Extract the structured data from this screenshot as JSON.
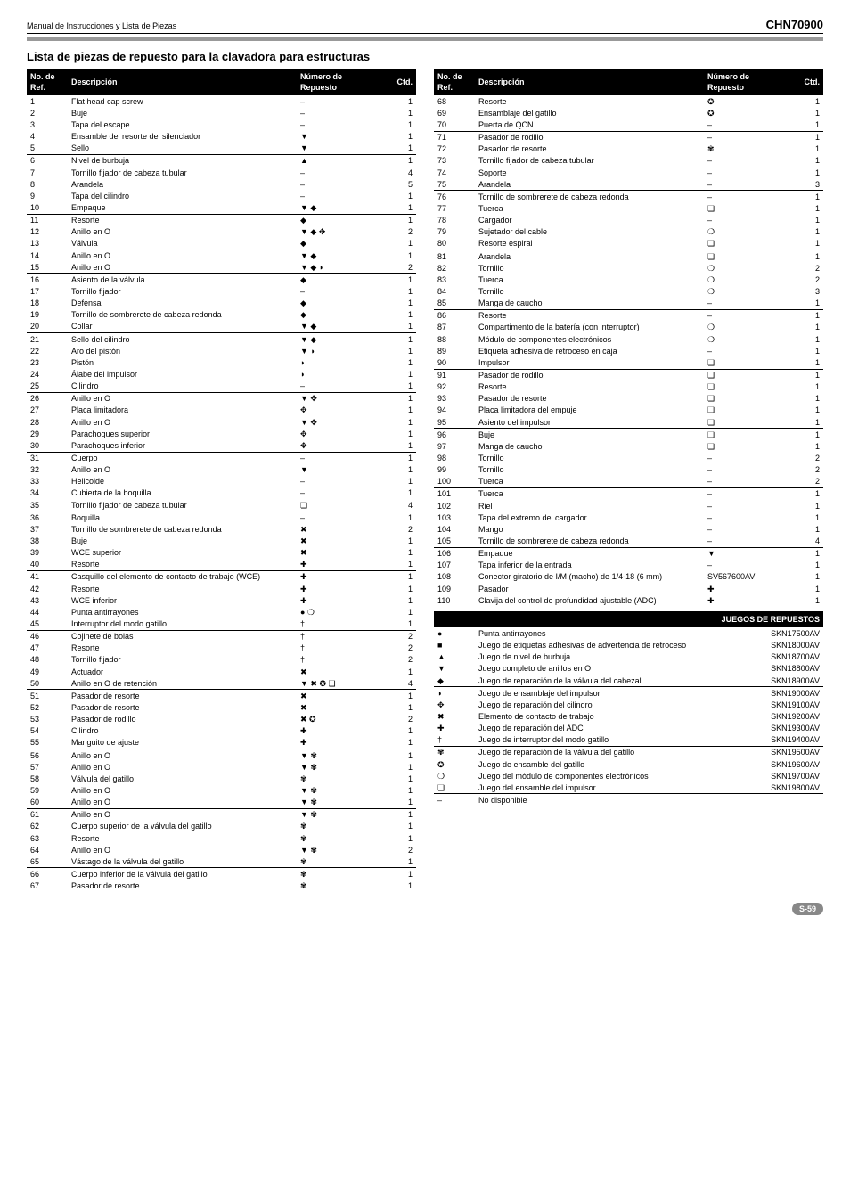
{
  "header": {
    "manual_title": "Manual de Instrucciones y Lista de Piezas",
    "model": "CHN70900"
  },
  "section_title": "Lista de piezas de repuesto para la clavadora para estructuras",
  "table_headers": {
    "ref": "No. de\nRef.",
    "desc": "Descripción",
    "rep": "Número de\nRepuesto",
    "qty": "Ctd."
  },
  "left": [
    {
      "ref": "1",
      "desc": "Flat head cap screw",
      "rep": "–",
      "qty": "1"
    },
    {
      "ref": "2",
      "desc": "Buje",
      "rep": "–",
      "qty": "1"
    },
    {
      "ref": "3",
      "desc": "Tapa del escape",
      "rep": "–",
      "qty": "1"
    },
    {
      "ref": "4",
      "desc": "Ensamble del resorte del silenciador",
      "rep": "▼",
      "qty": "1"
    },
    {
      "ref": "5",
      "desc": "Sello",
      "rep": "▼",
      "qty": "1"
    },
    {
      "ref": "6",
      "desc": "Nivel de burbuja",
      "rep": "▲",
      "qty": "1",
      "sep": true
    },
    {
      "ref": "7",
      "desc": "Tornillo fijador de cabeza tubular",
      "rep": "–",
      "qty": "4"
    },
    {
      "ref": "8",
      "desc": "Arandela",
      "rep": "–",
      "qty": "5"
    },
    {
      "ref": "9",
      "desc": "Tapa del cilindro",
      "rep": "–",
      "qty": "1"
    },
    {
      "ref": "10",
      "desc": "Empaque",
      "rep": "▼ ◆",
      "qty": "1"
    },
    {
      "ref": "11",
      "desc": "Resorte",
      "rep": "◆",
      "qty": "1",
      "sep": true
    },
    {
      "ref": "12",
      "desc": "Anillo en O",
      "rep": "▼ ◆ ✥",
      "qty": "2"
    },
    {
      "ref": "13",
      "desc": "Válvula",
      "rep": "◆",
      "qty": "1"
    },
    {
      "ref": "14",
      "desc": "Anillo en O",
      "rep": "▼ ◆",
      "qty": "1"
    },
    {
      "ref": "15",
      "desc": "Anillo en O",
      "rep": "▼ ◆ ◗",
      "qty": "2"
    },
    {
      "ref": "16",
      "desc": "Asiento de la válvula",
      "rep": "◆",
      "qty": "1",
      "sep": true
    },
    {
      "ref": "17",
      "desc": "Tornillo fijador",
      "rep": "–",
      "qty": "1"
    },
    {
      "ref": "18",
      "desc": "Defensa",
      "rep": "◆",
      "qty": "1"
    },
    {
      "ref": "19",
      "desc": "Tornillo de sombrerete de cabeza redonda",
      "rep": "◆",
      "qty": "1"
    },
    {
      "ref": "20",
      "desc": "Collar",
      "rep": "▼ ◆",
      "qty": "1"
    },
    {
      "ref": "21",
      "desc": "Sello del cilindro",
      "rep": "▼ ◆",
      "qty": "1",
      "sep": true
    },
    {
      "ref": "22",
      "desc": "Aro del pistón",
      "rep": "▼ ◗",
      "qty": "1"
    },
    {
      "ref": "23",
      "desc": "Pistón",
      "rep": "◗",
      "qty": "1"
    },
    {
      "ref": "24",
      "desc": "Álabe del impulsor",
      "rep": "◗",
      "qty": "1"
    },
    {
      "ref": "25",
      "desc": "Cilindro",
      "rep": "–",
      "qty": "1"
    },
    {
      "ref": "26",
      "desc": "Anillo en O",
      "rep": "▼ ✥",
      "qty": "1",
      "sep": true
    },
    {
      "ref": "27",
      "desc": "Placa limitadora",
      "rep": "✥",
      "qty": "1"
    },
    {
      "ref": "28",
      "desc": "Anillo en O",
      "rep": "▼ ✥",
      "qty": "1"
    },
    {
      "ref": "29",
      "desc": "Parachoques superior",
      "rep": "✥",
      "qty": "1"
    },
    {
      "ref": "30",
      "desc": "Parachoques inferior",
      "rep": "✥",
      "qty": "1"
    },
    {
      "ref": "31",
      "desc": "Cuerpo",
      "rep": "–",
      "qty": "1",
      "sep": true
    },
    {
      "ref": "32",
      "desc": "Anillo en O",
      "rep": "▼",
      "qty": "1"
    },
    {
      "ref": "33",
      "desc": "Helicoide",
      "rep": "–",
      "qty": "1"
    },
    {
      "ref": "34",
      "desc": "Cubierta de la boquilla",
      "rep": "–",
      "qty": "1"
    },
    {
      "ref": "35",
      "desc": "Tornillo fijador de cabeza tubular",
      "rep": "❏",
      "qty": "4"
    },
    {
      "ref": "36",
      "desc": "Boquilla",
      "rep": "–",
      "qty": "1",
      "sep": true
    },
    {
      "ref": "37",
      "desc": "Tornillo de sombrerete de cabeza redonda",
      "rep": "✖",
      "qty": "2"
    },
    {
      "ref": "38",
      "desc": "Buje",
      "rep": "✖",
      "qty": "1"
    },
    {
      "ref": "39",
      "desc": "WCE superior",
      "rep": "✖",
      "qty": "1"
    },
    {
      "ref": "40",
      "desc": "Resorte",
      "rep": "✚",
      "qty": "1"
    },
    {
      "ref": "41",
      "desc": "Casquillo del elemento de contacto de trabajo (WCE)",
      "rep": "✚",
      "qty": "1",
      "sep": true
    },
    {
      "ref": "42",
      "desc": "Resorte",
      "rep": "✚",
      "qty": "1"
    },
    {
      "ref": "43",
      "desc": "WCE inferior",
      "rep": "✚",
      "qty": "1"
    },
    {
      "ref": "44",
      "desc": "Punta antirrayones",
      "rep": "● ❍",
      "qty": "1"
    },
    {
      "ref": "45",
      "desc": "Interruptor del modo gatillo",
      "rep": "†",
      "qty": "1"
    },
    {
      "ref": "46",
      "desc": "Cojinete de bolas",
      "rep": "†",
      "qty": "2",
      "sep": true
    },
    {
      "ref": "47",
      "desc": "Resorte",
      "rep": "†",
      "qty": "2"
    },
    {
      "ref": "48",
      "desc": "Tornillo fijador",
      "rep": "†",
      "qty": "2"
    },
    {
      "ref": "49",
      "desc": "Actuador",
      "rep": "✖",
      "qty": "1"
    },
    {
      "ref": "50",
      "desc": "Anillo en O de retención",
      "rep": "▼ ✖ ✪ ❏",
      "qty": "4"
    },
    {
      "ref": "51",
      "desc": "Pasador de resorte",
      "rep": "✖",
      "qty": "1",
      "sep": true
    },
    {
      "ref": "52",
      "desc": "Pasador de resorte",
      "rep": "✖",
      "qty": "1"
    },
    {
      "ref": "53",
      "desc": "Pasador de rodillo",
      "rep": "✖ ✪",
      "qty": "2"
    },
    {
      "ref": "54",
      "desc": "Cilindro",
      "rep": "✚",
      "qty": "1"
    },
    {
      "ref": "55",
      "desc": "Manguito de ajuste",
      "rep": "✚",
      "qty": "1"
    },
    {
      "ref": "56",
      "desc": "Anillo en O",
      "rep": "▼ ✾",
      "qty": "1",
      "sep": true
    },
    {
      "ref": "57",
      "desc": "Anillo en O",
      "rep": "▼ ✾",
      "qty": "1"
    },
    {
      "ref": "58",
      "desc": "Válvula del gatillo",
      "rep": "✾",
      "qty": "1"
    },
    {
      "ref": "59",
      "desc": "Anillo en O",
      "rep": "▼ ✾",
      "qty": "1"
    },
    {
      "ref": "60",
      "desc": "Anillo en O",
      "rep": "▼ ✾",
      "qty": "1"
    },
    {
      "ref": "61",
      "desc": "Anillo en O",
      "rep": "▼ ✾",
      "qty": "1",
      "sep": true
    },
    {
      "ref": "62",
      "desc": "Cuerpo superior de la válvula del gatillo",
      "rep": "✾",
      "qty": "1"
    },
    {
      "ref": "63",
      "desc": "Resorte",
      "rep": "✾",
      "qty": "1"
    },
    {
      "ref": "64",
      "desc": "Anillo en O",
      "rep": "▼ ✾",
      "qty": "2"
    },
    {
      "ref": "65",
      "desc": "Vástago de la válvula del gatillo",
      "rep": "✾",
      "qty": "1"
    },
    {
      "ref": "66",
      "desc": "Cuerpo inferior de la válvula del gatillo",
      "rep": "✾",
      "qty": "1",
      "sep": true
    },
    {
      "ref": "67",
      "desc": "Pasador de resorte",
      "rep": "✾",
      "qty": "1"
    }
  ],
  "right": [
    {
      "ref": "68",
      "desc": "Resorte",
      "rep": "✪",
      "qty": "1"
    },
    {
      "ref": "69",
      "desc": "Ensamblaje del gatillo",
      "rep": "✪",
      "qty": "1"
    },
    {
      "ref": "70",
      "desc": "Puerta de QCN",
      "rep": "–",
      "qty": "1"
    },
    {
      "ref": "71",
      "desc": "Pasador de rodillo",
      "rep": "–",
      "qty": "1",
      "sep": true
    },
    {
      "ref": "72",
      "desc": "Pasador de resorte",
      "rep": "✾",
      "qty": "1"
    },
    {
      "ref": "73",
      "desc": "Tornillo fijador de cabeza tubular",
      "rep": "–",
      "qty": "1"
    },
    {
      "ref": "74",
      "desc": "Soporte",
      "rep": "–",
      "qty": "1"
    },
    {
      "ref": "75",
      "desc": "Arandela",
      "rep": "–",
      "qty": "3"
    },
    {
      "ref": "76",
      "desc": "Tornillo de sombrerete de cabeza redonda",
      "rep": "–",
      "qty": "1",
      "sep": true
    },
    {
      "ref": "77",
      "desc": "Tuerca",
      "rep": "❏",
      "qty": "1"
    },
    {
      "ref": "78",
      "desc": "Cargador",
      "rep": "–",
      "qty": "1"
    },
    {
      "ref": "79",
      "desc": "Sujetador del cable",
      "rep": "❍",
      "qty": "1"
    },
    {
      "ref": "80",
      "desc": "Resorte espiral",
      "rep": "❏",
      "qty": "1"
    },
    {
      "ref": "81",
      "desc": "Arandela",
      "rep": "❏",
      "qty": "1",
      "sep": true
    },
    {
      "ref": "82",
      "desc": "Tornillo",
      "rep": "❍",
      "qty": "2"
    },
    {
      "ref": "83",
      "desc": "Tuerca",
      "rep": "❍",
      "qty": "2"
    },
    {
      "ref": "84",
      "desc": "Tornillo",
      "rep": "❍",
      "qty": "3"
    },
    {
      "ref": "85",
      "desc": "Manga de caucho",
      "rep": "–",
      "qty": "1"
    },
    {
      "ref": "86",
      "desc": "Resorte",
      "rep": "–",
      "qty": "1",
      "sep": true
    },
    {
      "ref": "87",
      "desc": "Compartimento de la batería (con interruptor)",
      "rep": "❍",
      "qty": "1"
    },
    {
      "ref": "88",
      "desc": "Módulo de componentes electrónicos",
      "rep": "❍",
      "qty": "1"
    },
    {
      "ref": "89",
      "desc": "Etiqueta adhesiva de retroceso en caja",
      "rep": "–",
      "qty": "1"
    },
    {
      "ref": "90",
      "desc": "Impulsor",
      "rep": "❏",
      "qty": "1"
    },
    {
      "ref": "91",
      "desc": "Pasador de rodillo",
      "rep": "❏",
      "qty": "1",
      "sep": true
    },
    {
      "ref": "92",
      "desc": "Resorte",
      "rep": "❏",
      "qty": "1"
    },
    {
      "ref": "93",
      "desc": "Pasador de resorte",
      "rep": "❏",
      "qty": "1"
    },
    {
      "ref": "94",
      "desc": "Placa limitadora del empuje",
      "rep": "❏",
      "qty": "1"
    },
    {
      "ref": "95",
      "desc": "Asiento del impulsor",
      "rep": "❏",
      "qty": "1"
    },
    {
      "ref": "96",
      "desc": "Buje",
      "rep": "❏",
      "qty": "1",
      "sep": true
    },
    {
      "ref": "97",
      "desc": "Manga de caucho",
      "rep": "❏",
      "qty": "1"
    },
    {
      "ref": "98",
      "desc": "Tornillo",
      "rep": "–",
      "qty": "2"
    },
    {
      "ref": "99",
      "desc": "Tornillo",
      "rep": "–",
      "qty": "2"
    },
    {
      "ref": "100",
      "desc": "Tuerca",
      "rep": "–",
      "qty": "2"
    },
    {
      "ref": "101",
      "desc": "Tuerca",
      "rep": "–",
      "qty": "1",
      "sep": true
    },
    {
      "ref": "102",
      "desc": "Riel",
      "rep": "–",
      "qty": "1"
    },
    {
      "ref": "103",
      "desc": "Tapa del extremo del cargador",
      "rep": "–",
      "qty": "1"
    },
    {
      "ref": "104",
      "desc": "Mango",
      "rep": "–",
      "qty": "1"
    },
    {
      "ref": "105",
      "desc": "Tornillo de sombrerete de cabeza redonda",
      "rep": "–",
      "qty": "4"
    },
    {
      "ref": "106",
      "desc": "Empaque",
      "rep": "▼",
      "qty": "1",
      "sep": true
    },
    {
      "ref": "107",
      "desc": "Tapa inferior de la entrada",
      "rep": "–",
      "qty": "1"
    },
    {
      "ref": "108",
      "desc": "Conector giratorio de I/M (macho) de 1/4-18 (6 mm)",
      "rep": "SV567600AV",
      "qty": "1"
    },
    {
      "ref": "109",
      "desc": "Pasador",
      "rep": "✚",
      "qty": "1"
    },
    {
      "ref": "110",
      "desc": "Clavija del control de profundidad ajustable (ADC)",
      "rep": "✚",
      "qty": "1"
    }
  ],
  "kits_title": "JUEGOS DE REPUESTOS",
  "kits": [
    {
      "ref": "●",
      "desc": "Punta antirrayones",
      "rep": "SKN17500AV"
    },
    {
      "ref": "■",
      "desc": "Juego de etiquetas adhesivas de advertencia de retroceso",
      "rep": "SKN18000AV"
    },
    {
      "ref": "▲",
      "desc": "Juego de nivel de burbuja",
      "rep": "SKN18700AV"
    },
    {
      "ref": "▼",
      "desc": "Juego completo de anillos en O",
      "rep": "SKN18800AV"
    },
    {
      "ref": "◆",
      "desc": "Juego de reparación de la válvula del cabezal",
      "rep": "SKN18900AV"
    },
    {
      "ref": "◗",
      "desc": "Juego de ensamblaje del impulsor",
      "rep": "SKN19000AV",
      "sep": true
    },
    {
      "ref": "✥",
      "desc": "Juego de reparación del cilindro",
      "rep": "SKN19100AV"
    },
    {
      "ref": "✖",
      "desc": "Elemento de contacto de trabajo",
      "rep": "SKN19200AV"
    },
    {
      "ref": "✚",
      "desc": "Juego de reparación del ADC",
      "rep": "SKN19300AV"
    },
    {
      "ref": "†",
      "desc": "Juego de interruptor del modo gatillo",
      "rep": "SKN19400AV"
    },
    {
      "ref": "✾",
      "desc": "Juego de reparación de la válvula del gatillo",
      "rep": "SKN19500AV",
      "sep": true
    },
    {
      "ref": "✪",
      "desc": "Juego de ensamble del gatillo",
      "rep": "SKN19600AV"
    },
    {
      "ref": "❍",
      "desc": "Juego del módulo de componentes electrónicos",
      "rep": "SKN19700AV"
    },
    {
      "ref": "❏",
      "desc": "Juego del ensamble del impulsor",
      "rep": "SKN19800AV"
    },
    {
      "ref": "–",
      "desc": "No disponible",
      "rep": "",
      "sep": true
    }
  ],
  "page_badge": "S-59"
}
